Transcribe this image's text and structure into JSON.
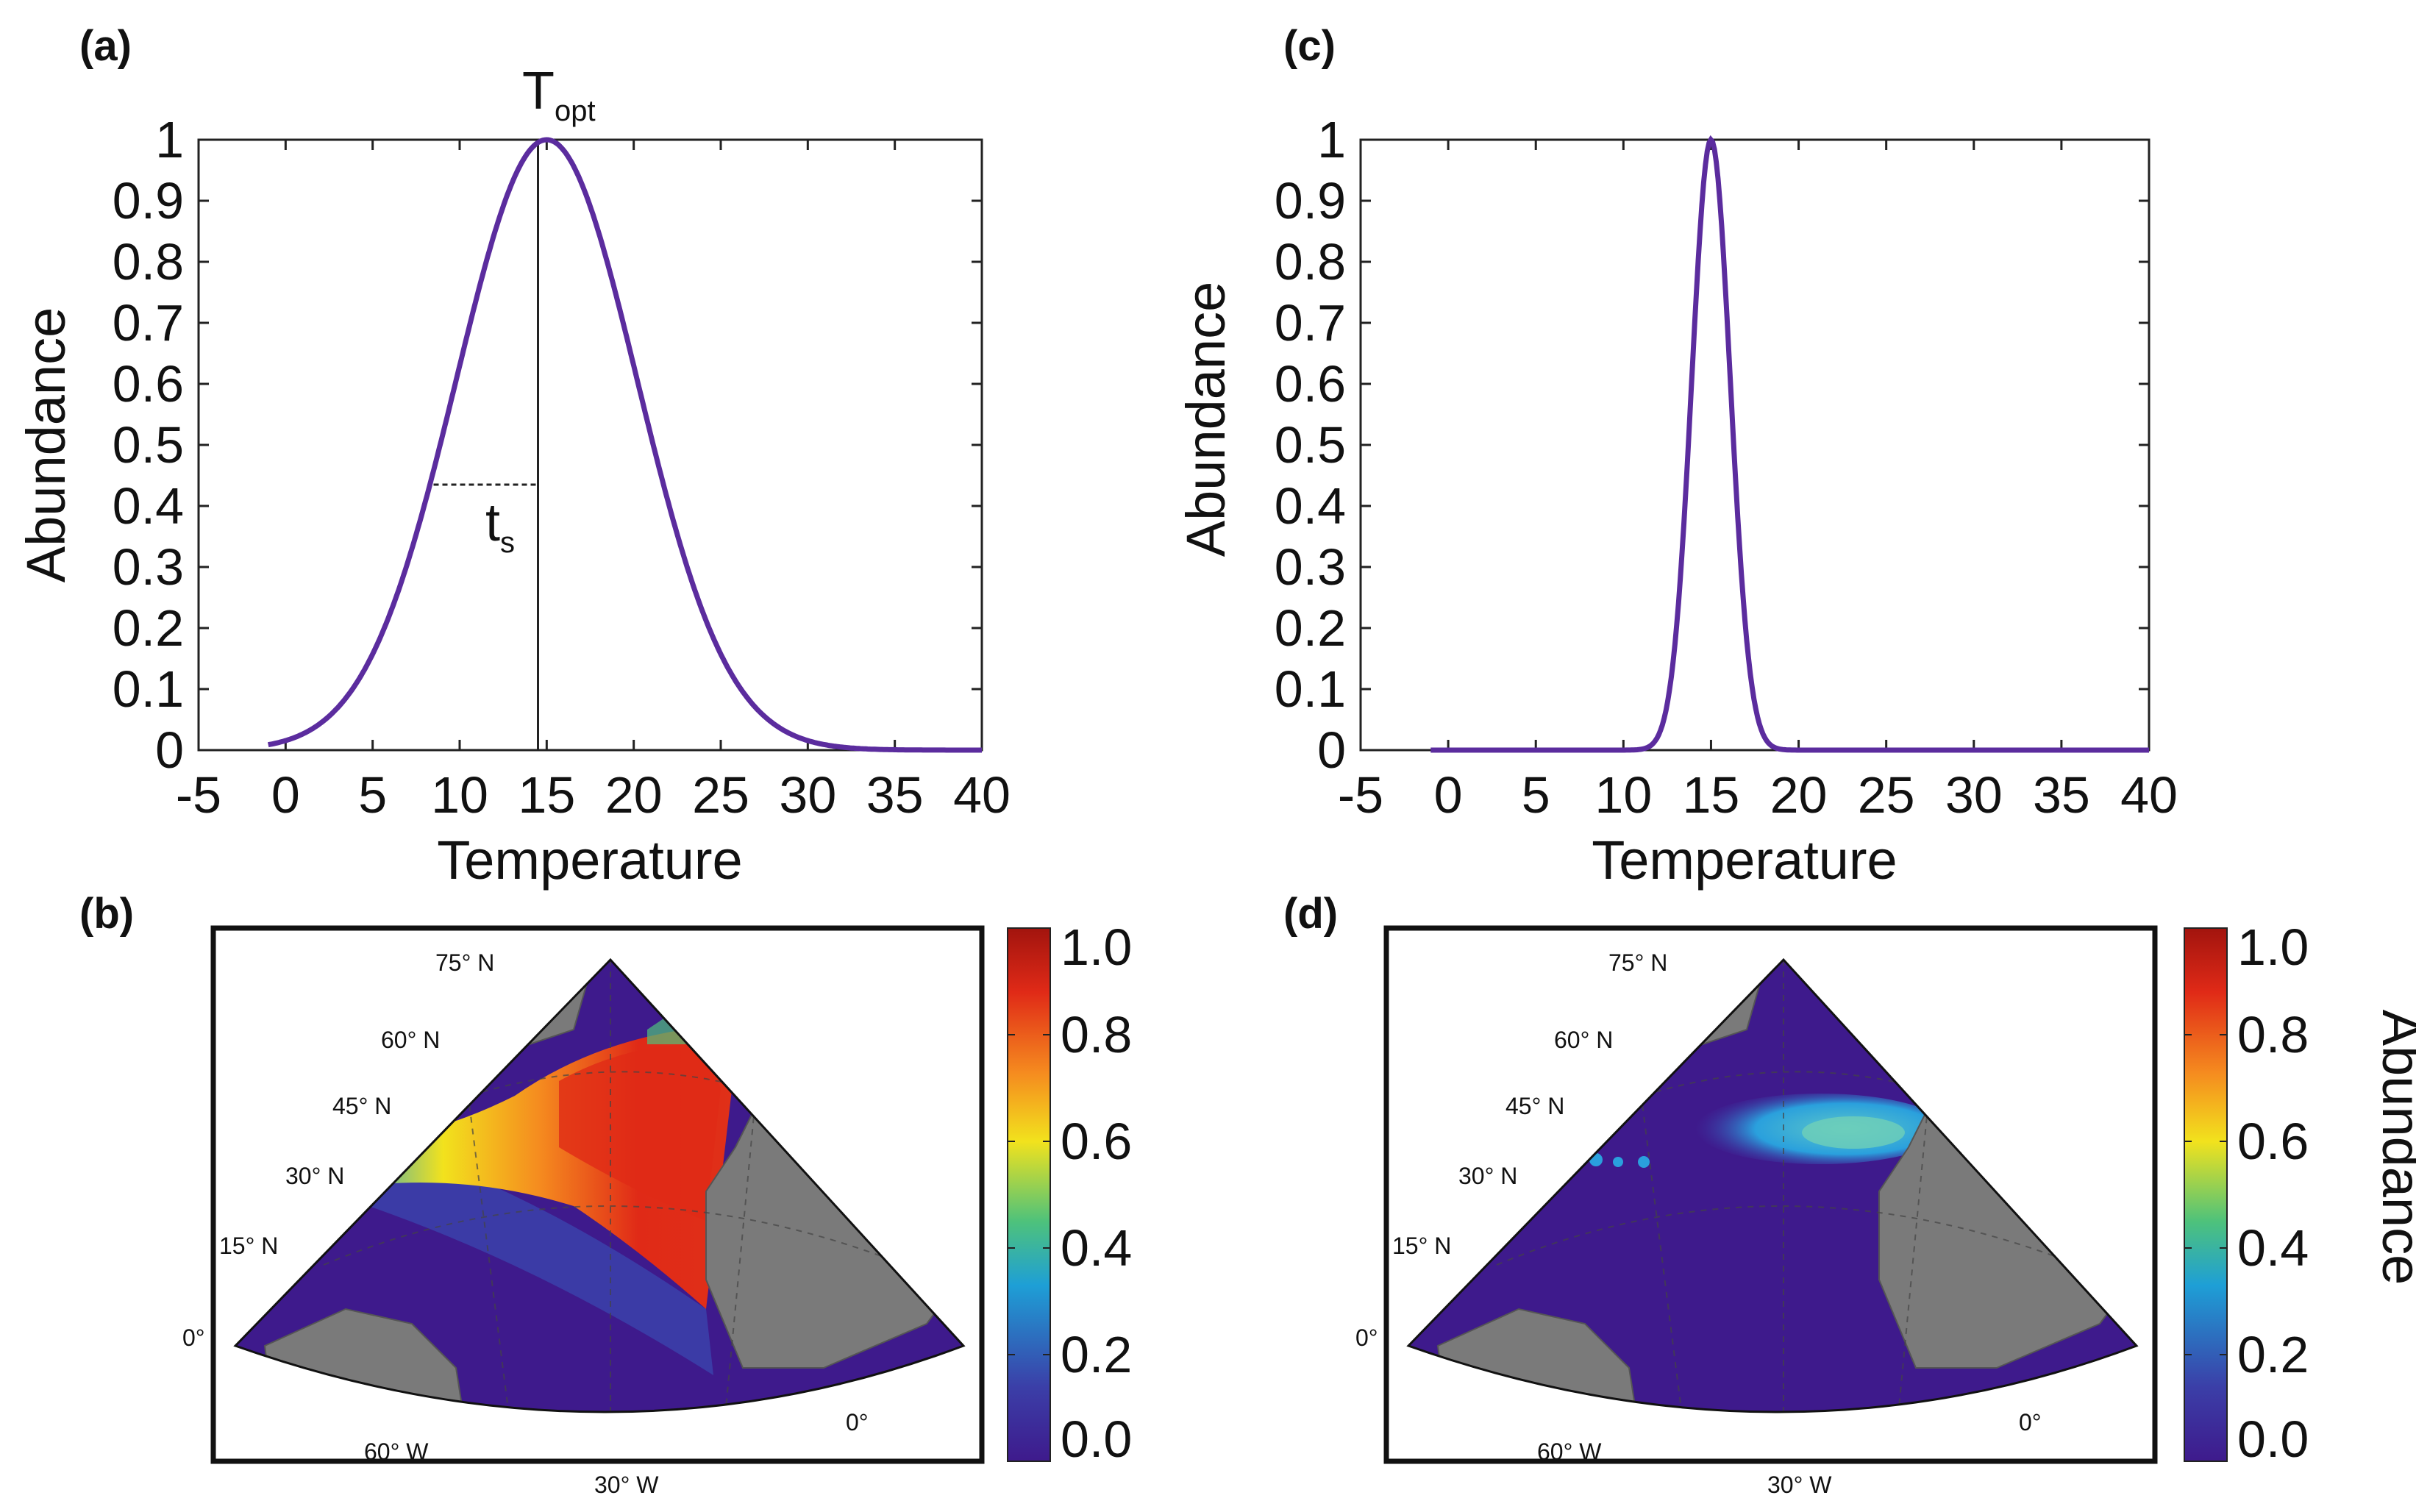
{
  "panels": {
    "a": "(a)",
    "b": "(b)",
    "c": "(c)",
    "d": "(d)"
  },
  "chart_data": [
    {
      "id": "a",
      "type": "line",
      "title": "",
      "xlabel": "Temperature",
      "ylabel": "Abundance",
      "xlim": [
        -5,
        40
      ],
      "ylim": [
        0,
        1
      ],
      "x_ticks": [
        "-5",
        "0",
        "5",
        "10",
        "15",
        "20",
        "25",
        "30",
        "35",
        "40"
      ],
      "y_ticks": [
        "0",
        "0.1",
        "0.2",
        "0.3",
        "0.4",
        "0.5",
        "0.6",
        "0.7",
        "0.8",
        "0.9",
        "1"
      ],
      "curve": {
        "kind": "gaussian",
        "x_min": -1,
        "x_max": 40,
        "peak_x": 15,
        "peak_y": 1,
        "sigma": 5.2,
        "color": "#5b2c9e"
      },
      "annotations": {
        "T_main": "T",
        "T_sub": "opt",
        "t_main": "t",
        "t_sub": "s",
        "optimum_line_x": 14.5,
        "width_line": {
          "x_start": 8.5,
          "x_end": 14.5,
          "y": 0.435
        }
      }
    },
    {
      "id": "c",
      "type": "line",
      "title": "",
      "xlabel": "Temperature",
      "ylabel": "Abundance",
      "xlim": [
        -5,
        40
      ],
      "ylim": [
        0,
        1
      ],
      "x_ticks": [
        "-5",
        "0",
        "5",
        "10",
        "15",
        "20",
        "25",
        "30",
        "35",
        "40"
      ],
      "y_ticks": [
        "0",
        "0.1",
        "0.2",
        "0.3",
        "0.4",
        "0.5",
        "0.6",
        "0.7",
        "0.8",
        "0.9",
        "1"
      ],
      "curve": {
        "kind": "gaussian",
        "x_min": -1,
        "x_max": 40,
        "peak_x": 15,
        "peak_y": 1,
        "sigma": 1.1,
        "color": "#5b2c9e"
      }
    }
  ],
  "maps": {
    "b": {
      "lat_labels": [
        "75° N",
        "60° N",
        "45° N",
        "30° N",
        "15° N",
        "0°"
      ],
      "lon_labels": [
        "60° W",
        "30° W",
        "0°"
      ]
    },
    "d": {
      "lat_labels": [
        "75° N",
        "60° N",
        "45° N",
        "30° N",
        "15° N",
        "0°"
      ],
      "lon_labels": [
        "60° W",
        "30° W",
        "0°"
      ]
    }
  },
  "colorbar": {
    "ticks": [
      "0.0",
      "0.2",
      "0.4",
      "0.6",
      "0.8",
      "1.0"
    ],
    "label": "Abundance",
    "colors": [
      "#3e1a8c",
      "#3b3fa8",
      "#1e9fd6",
      "#4ec27b",
      "#f2e21d",
      "#f58a1f",
      "#e02a17",
      "#a2140e"
    ]
  }
}
